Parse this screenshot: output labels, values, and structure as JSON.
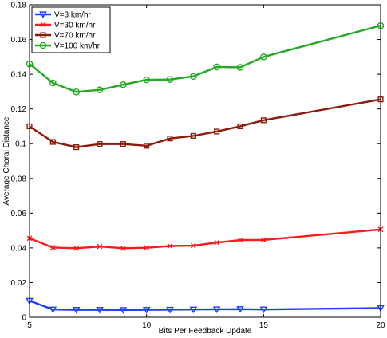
{
  "chart_data": {
    "type": "line",
    "title": "",
    "xlabel": "Bits Per Feedback Update",
    "ylabel": "Average Choral Distance",
    "xlim": [
      5,
      20
    ],
    "ylim": [
      0,
      0.18
    ],
    "xticks": [
      5,
      10,
      15,
      20
    ],
    "yticks": [
      0,
      0.02,
      0.04,
      0.06,
      0.08,
      0.1,
      0.12,
      0.14,
      0.16,
      0.18
    ],
    "xtick_labels": [
      "5",
      "10",
      "15",
      "20"
    ],
    "ytick_labels": [
      "0",
      "0.02",
      "0.04",
      "0.06",
      "0.08",
      "0.1",
      "0.12",
      "0.14",
      "0.16",
      "0.18"
    ],
    "grid": false,
    "legend_position": "top-left",
    "x": [
      5,
      6,
      7,
      8,
      9,
      10,
      11,
      12,
      13,
      14,
      15,
      20
    ],
    "series": [
      {
        "name": "V=3 km/hr",
        "color": "#1f3fff",
        "marker": "triangle-down",
        "values": [
          0.0095,
          0.0045,
          0.0043,
          0.0043,
          0.0042,
          0.0043,
          0.0044,
          0.0045,
          0.0046,
          0.0047,
          0.0045,
          0.0053
        ]
      },
      {
        "name": "V=30 km/hr",
        "color": "#ff1a1a",
        "marker": "x",
        "values": [
          0.0455,
          0.0402,
          0.0398,
          0.0408,
          0.0398,
          0.0401,
          0.0411,
          0.0413,
          0.0431,
          0.0445,
          0.0446,
          0.0506
        ]
      },
      {
        "name": "V=70 km/hr",
        "color": "#8b1a0a",
        "marker": "square",
        "values": [
          0.11,
          0.101,
          0.098,
          0.0998,
          0.0998,
          0.0988,
          0.103,
          0.1045,
          0.107,
          0.11,
          0.1135,
          0.1255
        ]
      },
      {
        "name": "V=100 km/hr",
        "color": "#22aa22",
        "marker": "circle",
        "values": [
          0.146,
          0.135,
          0.1298,
          0.131,
          0.134,
          0.1368,
          0.137,
          0.1388,
          0.1442,
          0.144,
          0.15,
          0.168
        ]
      }
    ]
  }
}
